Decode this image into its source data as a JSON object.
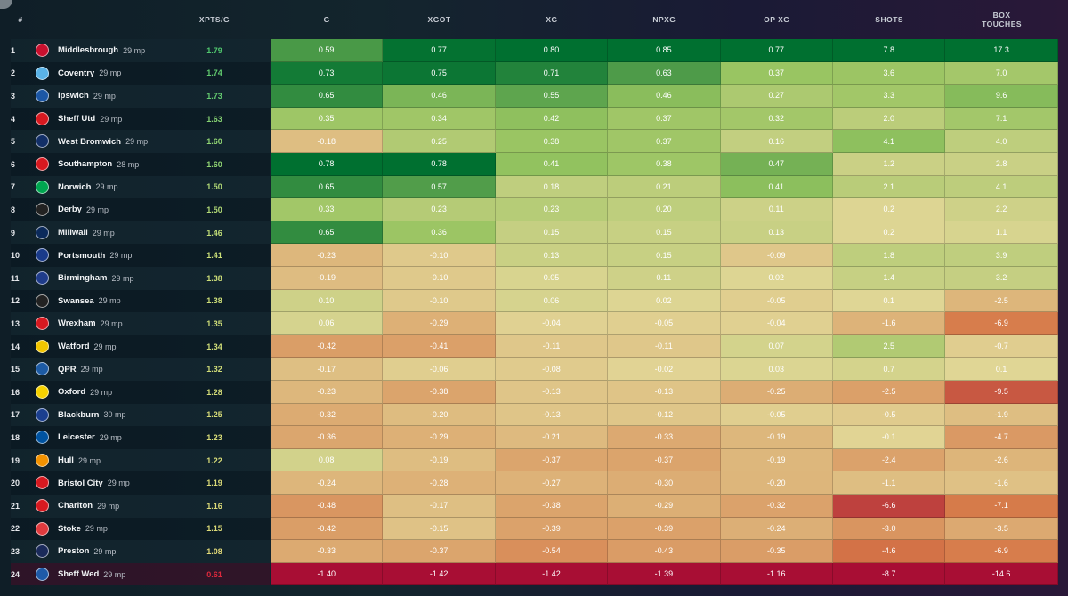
{
  "header": {
    "rank": "#",
    "xpts": "XPTS/G",
    "columns": [
      "G",
      "XGOT",
      "XG",
      "NPXG",
      "OP XG",
      "SHOTS",
      "BOX\nTOUCHES"
    ]
  },
  "chart_data": {
    "type": "table",
    "columns": [
      "G",
      "XGOT",
      "XG",
      "NPXG",
      "OP XG",
      "SHOTS",
      "BOX TOUCHES"
    ],
    "rows": [
      {
        "rank": "1",
        "team": "Middlesbrough",
        "mp": "29 mp",
        "xpts": "1.79",
        "values": [
          "0.59",
          "0.77",
          "0.80",
          "0.85",
          "0.77",
          "7.8",
          "17.3"
        ]
      },
      {
        "rank": "2",
        "team": "Coventry",
        "mp": "29 mp",
        "xpts": "1.74",
        "values": [
          "0.73",
          "0.75",
          "0.71",
          "0.63",
          "0.37",
          "3.6",
          "7.0"
        ]
      },
      {
        "rank": "3",
        "team": "Ipswich",
        "mp": "29 mp",
        "xpts": "1.73",
        "values": [
          "0.65",
          "0.46",
          "0.55",
          "0.46",
          "0.27",
          "3.3",
          "9.6"
        ]
      },
      {
        "rank": "4",
        "team": "Sheff Utd",
        "mp": "29 mp",
        "xpts": "1.63",
        "values": [
          "0.35",
          "0.34",
          "0.42",
          "0.37",
          "0.32",
          "2.0",
          "7.1"
        ]
      },
      {
        "rank": "5",
        "team": "West Bromwich",
        "mp": "29 mp",
        "xpts": "1.60",
        "values": [
          "-0.18",
          "0.25",
          "0.38",
          "0.37",
          "0.16",
          "4.1",
          "4.0"
        ]
      },
      {
        "rank": "6",
        "team": "Southampton",
        "mp": "28 mp",
        "xpts": "1.60",
        "values": [
          "0.78",
          "0.78",
          "0.41",
          "0.38",
          "0.47",
          "1.2",
          "2.8"
        ]
      },
      {
        "rank": "7",
        "team": "Norwich",
        "mp": "29 mp",
        "xpts": "1.50",
        "values": [
          "0.65",
          "0.57",
          "0.18",
          "0.21",
          "0.41",
          "2.1",
          "4.1"
        ]
      },
      {
        "rank": "8",
        "team": "Derby",
        "mp": "29 mp",
        "xpts": "1.50",
        "values": [
          "0.33",
          "0.23",
          "0.23",
          "0.20",
          "0.11",
          "0.2",
          "2.2"
        ]
      },
      {
        "rank": "9",
        "team": "Millwall",
        "mp": "29 mp",
        "xpts": "1.46",
        "values": [
          "0.65",
          "0.36",
          "0.15",
          "0.15",
          "0.13",
          "0.2",
          "1.1"
        ]
      },
      {
        "rank": "10",
        "team": "Portsmouth",
        "mp": "29 mp",
        "xpts": "1.41",
        "values": [
          "-0.23",
          "-0.10",
          "0.13",
          "0.15",
          "-0.09",
          "1.8",
          "3.9"
        ]
      },
      {
        "rank": "11",
        "team": "Birmingham",
        "mp": "29 mp",
        "xpts": "1.38",
        "values": [
          "-0.19",
          "-0.10",
          "0.05",
          "0.11",
          "0.02",
          "1.4",
          "3.2"
        ]
      },
      {
        "rank": "12",
        "team": "Swansea",
        "mp": "29 mp",
        "xpts": "1.38",
        "values": [
          "0.10",
          "-0.10",
          "0.06",
          "0.02",
          "-0.05",
          "0.1",
          "-2.5"
        ]
      },
      {
        "rank": "13",
        "team": "Wrexham",
        "mp": "29 mp",
        "xpts": "1.35",
        "values": [
          "0.06",
          "-0.29",
          "-0.04",
          "-0.05",
          "-0.04",
          "-1.6",
          "-6.9"
        ]
      },
      {
        "rank": "14",
        "team": "Watford",
        "mp": "29 mp",
        "xpts": "1.34",
        "values": [
          "-0.42",
          "-0.41",
          "-0.11",
          "-0.11",
          "0.07",
          "2.5",
          "-0.7"
        ]
      },
      {
        "rank": "15",
        "team": "QPR",
        "mp": "29 mp",
        "xpts": "1.32",
        "values": [
          "-0.17",
          "-0.06",
          "-0.08",
          "-0.02",
          "0.03",
          "0.7",
          "0.1"
        ]
      },
      {
        "rank": "16",
        "team": "Oxford",
        "mp": "29 mp",
        "xpts": "1.28",
        "values": [
          "-0.23",
          "-0.38",
          "-0.13",
          "-0.13",
          "-0.25",
          "-2.5",
          "-9.5"
        ]
      },
      {
        "rank": "17",
        "team": "Blackburn",
        "mp": "30 mp",
        "xpts": "1.25",
        "values": [
          "-0.32",
          "-0.20",
          "-0.13",
          "-0.12",
          "-0.05",
          "-0.5",
          "-1.9"
        ]
      },
      {
        "rank": "18",
        "team": "Leicester",
        "mp": "29 mp",
        "xpts": "1.23",
        "values": [
          "-0.36",
          "-0.29",
          "-0.21",
          "-0.33",
          "-0.19",
          "-0.1",
          "-4.7"
        ]
      },
      {
        "rank": "19",
        "team": "Hull",
        "mp": "29 mp",
        "xpts": "1.22",
        "values": [
          "0.08",
          "-0.19",
          "-0.37",
          "-0.37",
          "-0.19",
          "-2.4",
          "-2.6"
        ]
      },
      {
        "rank": "20",
        "team": "Bristol City",
        "mp": "29 mp",
        "xpts": "1.19",
        "values": [
          "-0.24",
          "-0.28",
          "-0.27",
          "-0.30",
          "-0.20",
          "-1.1",
          "-1.6"
        ]
      },
      {
        "rank": "21",
        "team": "Charlton",
        "mp": "29 mp",
        "xpts": "1.16",
        "values": [
          "-0.48",
          "-0.17",
          "-0.38",
          "-0.29",
          "-0.32",
          "-6.6",
          "-7.1"
        ]
      },
      {
        "rank": "22",
        "team": "Stoke",
        "mp": "29 mp",
        "xpts": "1.15",
        "values": [
          "-0.42",
          "-0.15",
          "-0.39",
          "-0.39",
          "-0.24",
          "-3.0",
          "-3.5"
        ]
      },
      {
        "rank": "23",
        "team": "Preston",
        "mp": "29 mp",
        "xpts": "1.08",
        "values": [
          "-0.33",
          "-0.37",
          "-0.54",
          "-0.43",
          "-0.35",
          "-4.6",
          "-6.9"
        ]
      },
      {
        "rank": "24",
        "team": "Sheff Wed",
        "mp": "29 mp",
        "xpts": "0.61",
        "values": [
          "-1.40",
          "-1.42",
          "-1.42",
          "-1.39",
          "-1.16",
          "-8.7",
          "-14.6"
        ]
      }
    ]
  },
  "badges": {
    "Middlesbrough": [
      "#c8102e",
      "MB"
    ],
    "Coventry": [
      "#5ab2e6",
      "CO"
    ],
    "Ipswich": [
      "#1c57a5",
      "IP"
    ],
    "Sheff Utd": [
      "#d71920",
      "SU"
    ],
    "West Bromwich": [
      "#122f67",
      "WB"
    ],
    "Southampton": [
      "#d71920",
      "SO"
    ],
    "Norwich": [
      "#00a650",
      "NO"
    ],
    "Derby": [
      "#222222",
      "DE"
    ],
    "Millwall": [
      "#0b2a5b",
      "MI"
    ],
    "Portsmouth": [
      "#1a3b8a",
      "PO"
    ],
    "Birmingham": [
      "#1f3c8a",
      "BI"
    ],
    "Swansea": [
      "#222222",
      "SW"
    ],
    "Wrexham": [
      "#d71920",
      "WR"
    ],
    "Watford": [
      "#f2c500",
      "WA"
    ],
    "QPR": [
      "#1d5ba4",
      "QP"
    ],
    "Oxford": [
      "#f5d100",
      "OX"
    ],
    "Blackburn": [
      "#1b3f8f",
      "BL"
    ],
    "Leicester": [
      "#0053a0",
      "LE"
    ],
    "Hull": [
      "#f39200",
      "HU"
    ],
    "Bristol City": [
      "#d71920",
      "BC"
    ],
    "Charlton": [
      "#d71920",
      "CH"
    ],
    "Stoke": [
      "#e03a3e",
      "ST"
    ],
    "Preston": [
      "#1a2a5a",
      "PR"
    ],
    "Sheff Wed": [
      "#1e5aa8",
      "SW"
    ]
  }
}
